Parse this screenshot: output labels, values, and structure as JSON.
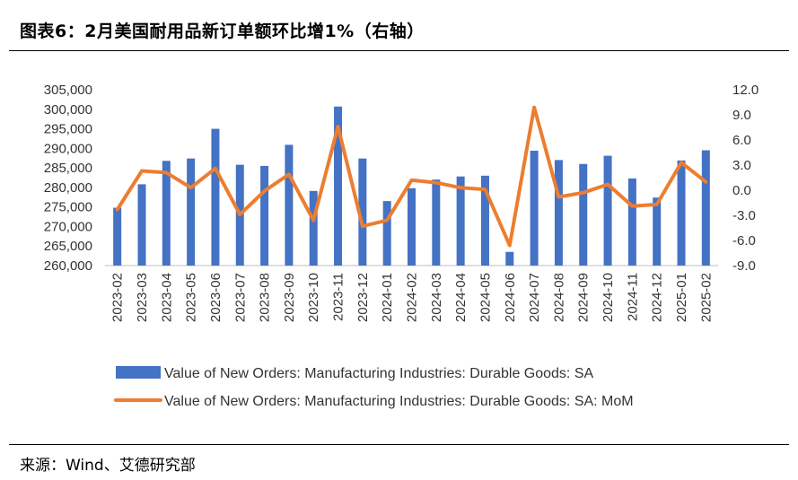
{
  "header": {
    "title": "图表6：2月美国耐用品新订单额环比增1%（右轴）"
  },
  "footer": {
    "source": "来源：Wind、艾德研究部"
  },
  "colors": {
    "bar": "#4472C4",
    "line": "#ED7D31"
  },
  "chart_data": {
    "type": "bar",
    "categories": [
      "2023-02",
      "2023-03",
      "2023-04",
      "2023-05",
      "2023-06",
      "2023-07",
      "2023-08",
      "2023-09",
      "2023-10",
      "2023-11",
      "2023-12",
      "2024-01",
      "2024-02",
      "2024-03",
      "2024-04",
      "2024-05",
      "2024-06",
      "2024-07",
      "2024-08",
      "2024-09",
      "2024-10",
      "2024-11",
      "2024-12",
      "2025-01",
      "2025-02"
    ],
    "series": [
      {
        "name": "Value of New Orders: Manufacturing Industries: Durable Goods: SA",
        "type": "bar",
        "axis": "left",
        "values": [
          274800,
          280800,
          286800,
          287400,
          295000,
          285800,
          285500,
          290900,
          279100,
          300700,
          287400,
          276500,
          279800,
          282000,
          282800,
          283000,
          263500,
          289400,
          287000,
          286000,
          288100,
          282300,
          277400,
          286900,
          289500
        ]
      },
      {
        "name": "Value of New Orders: Manufacturing Industries: Durable Goods: SA: MoM",
        "type": "line",
        "axis": "right",
        "values": [
          -2.3,
          2.3,
          2.1,
          0.3,
          2.6,
          -2.9,
          -0.1,
          1.9,
          -3.6,
          7.6,
          -4.3,
          -3.6,
          1.2,
          0.9,
          0.3,
          0.1,
          -6.6,
          9.9,
          -0.8,
          -0.3,
          0.7,
          -1.9,
          -1.7,
          3.3,
          1.0
        ]
      }
    ],
    "y_left": {
      "ticks": [
        "305,000",
        "300,000",
        "295,000",
        "290,000",
        "285,000",
        "280,000",
        "275,000",
        "270,000",
        "265,000",
        "260,000"
      ],
      "ylim": [
        260000,
        305000
      ]
    },
    "y_right": {
      "ticks": [
        "12.0",
        "9.0",
        "6.0",
        "3.0",
        "0.0",
        "-3.0",
        "-6.0",
        "-9.0"
      ],
      "ylim": [
        -9,
        12
      ]
    },
    "legend_position": "bottom",
    "grid": false
  }
}
